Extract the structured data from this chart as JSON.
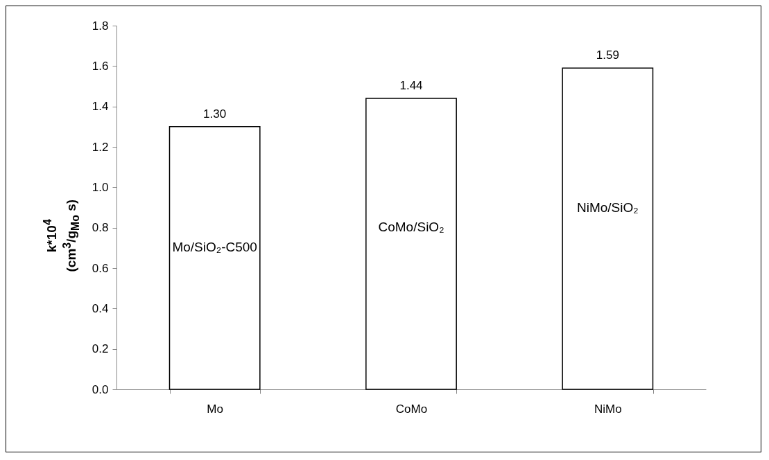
{
  "chart_data": {
    "type": "bar",
    "ylabel": "k*10$^{4}$\n(cm$^{3}$/g$_{Mo}$ s)",
    "categories": [
      "Mo",
      "CoMo",
      "NiMo"
    ],
    "values": [
      1.3,
      1.44,
      1.59
    ],
    "value_labels": [
      "1.30",
      "1.44",
      "1.59"
    ],
    "colors": [
      "#ffffff",
      "#ffffff",
      "#ffffff"
    ],
    "ylim": [
      0,
      1.8
    ],
    "yticks": [
      {
        "value": 0,
        "label": "0.0"
      },
      {
        "value": 0.2,
        "label": "0.2"
      },
      {
        "value": 0.4,
        "label": "0.4"
      },
      {
        "value": 0.6,
        "label": "0.6"
      },
      {
        "value": 0.8,
        "label": "0.8"
      },
      {
        "value": 1,
        "label": "1.0"
      },
      {
        "value": 1.2,
        "label": "1.2"
      },
      {
        "value": 1.4,
        "label": "1.4"
      },
      {
        "value": 1.6,
        "label": "1.6"
      },
      {
        "value": 1.8,
        "label": "1.8"
      }
    ],
    "annotations": [
      "Mo/SiO₂-C500",
      "CoMo/SiO₂",
      "NiMo/SiO₂"
    ],
    "grid": false
  }
}
